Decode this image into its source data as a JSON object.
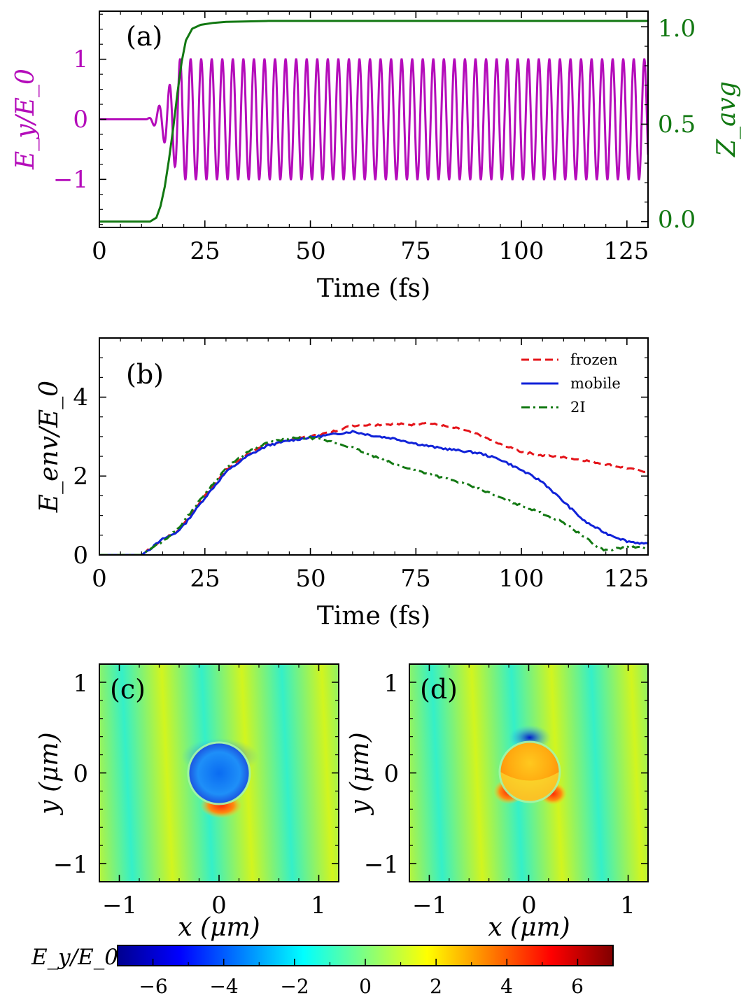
{
  "chart_data": [
    {
      "panel": "(a)",
      "type": "line",
      "xlabel": "Time (fs)",
      "ylabel": "E_y/E_0",
      "y2label": "Z_avg",
      "xlim": [
        0,
        130
      ],
      "ylim": [
        -1.8,
        1.8
      ],
      "y2lim": [
        -0.03,
        1.08
      ],
      "xticks": [
        "0",
        "25",
        "50",
        "75",
        "100",
        "125"
      ],
      "yticks": [
        "1",
        "0",
        "−1"
      ],
      "y2ticks": [
        "1.0",
        "0.5",
        "0.0"
      ],
      "series": [
        {
          "name": "E_y/E_0",
          "color": "#b40cba",
          "style": "solid",
          "description": "zero until ~11 fs, then oscillation at period ~2.5 fs ramping to amplitude 1 by ~19 fs",
          "onset_fs": 11,
          "ramp_end_fs": 19,
          "period_fs": 2.5,
          "amplitude": 1.0
        },
        {
          "name": "Z_avg",
          "color": "#127812",
          "style": "solid",
          "x": [
            0,
            12,
            13.5,
            14.5,
            15.5,
            16.5,
            17.5,
            18.5,
            19.5,
            20.5,
            22,
            24,
            27,
            30,
            40,
            130
          ],
          "y": [
            0.0,
            0.0,
            0.02,
            0.08,
            0.18,
            0.32,
            0.48,
            0.66,
            0.82,
            0.93,
            0.99,
            1.01,
            1.02,
            1.025,
            1.03,
            1.03
          ]
        }
      ]
    },
    {
      "panel": "(b)",
      "type": "line",
      "xlabel": "Time (fs)",
      "ylabel": "E_env/E_0",
      "xlim": [
        0,
        130
      ],
      "ylim": [
        0,
        5.5
      ],
      "xticks": [
        "0",
        "25",
        "50",
        "75",
        "100",
        "125"
      ],
      "yticks": [
        "4",
        "2",
        "0"
      ],
      "legend_position": "top-right",
      "series": [
        {
          "name": "frozen",
          "color": "#e4141a",
          "style": "dashed",
          "x": [
            0,
            10,
            12,
            15,
            18,
            20,
            25,
            30,
            35,
            40,
            45,
            50,
            55,
            60,
            65,
            70,
            75,
            77,
            80,
            85,
            90,
            95,
            100,
            105,
            110,
            115,
            120,
            125,
            128,
            130
          ],
          "y": [
            0,
            0,
            0.15,
            0.4,
            0.55,
            0.8,
            1.5,
            2.15,
            2.55,
            2.8,
            2.92,
            3.0,
            3.12,
            3.28,
            3.3,
            3.32,
            3.3,
            3.36,
            3.3,
            3.2,
            3.05,
            2.8,
            2.62,
            2.52,
            2.47,
            2.4,
            2.3,
            2.2,
            2.13,
            2.12
          ]
        },
        {
          "name": "mobile",
          "color": "#1022d8",
          "style": "solid",
          "x": [
            0,
            10,
            12,
            15,
            18,
            20,
            25,
            30,
            35,
            40,
            45,
            50,
            55,
            60,
            65,
            70,
            75,
            80,
            85,
            90,
            95,
            100,
            105,
            110,
            115,
            120,
            125,
            130
          ],
          "y": [
            0,
            0,
            0.15,
            0.4,
            0.55,
            0.75,
            1.45,
            2.1,
            2.5,
            2.78,
            2.9,
            2.98,
            3.05,
            3.13,
            3.02,
            2.95,
            2.82,
            2.72,
            2.65,
            2.58,
            2.42,
            2.15,
            1.85,
            1.35,
            0.85,
            0.55,
            0.35,
            0.27
          ]
        },
        {
          "name": "2I",
          "color": "#127812",
          "style": "dashdot",
          "x": [
            0,
            10,
            12,
            15,
            18,
            20,
            25,
            30,
            35,
            40,
            45,
            50,
            55,
            60,
            65,
            70,
            75,
            80,
            85,
            90,
            95,
            100,
            105,
            110,
            115,
            118,
            120,
            122,
            125,
            130
          ],
          "y": [
            0,
            0,
            0.15,
            0.35,
            0.6,
            0.85,
            1.55,
            2.2,
            2.6,
            2.85,
            2.95,
            2.97,
            2.87,
            2.72,
            2.5,
            2.3,
            2.15,
            2.0,
            1.85,
            1.68,
            1.45,
            1.25,
            1.05,
            0.82,
            0.45,
            0.2,
            0.12,
            0.15,
            0.2,
            0.18
          ]
        }
      ]
    },
    {
      "panel": "(c)",
      "type": "heatmap",
      "xlabel": "x (μm)",
      "ylabel": "y (μm)",
      "xlim": [
        -1.2,
        1.2
      ],
      "ylim": [
        -1.2,
        1.2
      ],
      "xticks": [
        "−1",
        "0",
        "1"
      ],
      "yticks": [
        "1",
        "0",
        "−1"
      ],
      "description": "background E_y ≈ -2 to 2 (vertical stripes, λ≈0.8 μm); particle radius ≈0.3 μm centered at origin with interior field ≈ -5"
    },
    {
      "panel": "(d)",
      "type": "heatmap",
      "xlabel": "x (μm)",
      "ylabel": "y (μm)",
      "xlim": [
        -1.2,
        1.2
      ],
      "ylim": [
        -1.2,
        1.2
      ],
      "xticks": [
        "−1",
        "0",
        "1"
      ],
      "yticks": [
        "1",
        "0",
        "−1"
      ],
      "description": "same background; particle interior ≈ +3, negative lobe ≈ -5 at top, positive lobes ≈ +4 at lower-left and lower-right"
    },
    {
      "panel": "colorbar",
      "type": "colorbar",
      "label": "E_y/E_0",
      "range": [
        -7,
        7
      ],
      "colormap": "jet",
      "ticks": [
        "−6",
        "−4",
        "−2",
        "0",
        "2",
        "4",
        "6"
      ]
    }
  ]
}
